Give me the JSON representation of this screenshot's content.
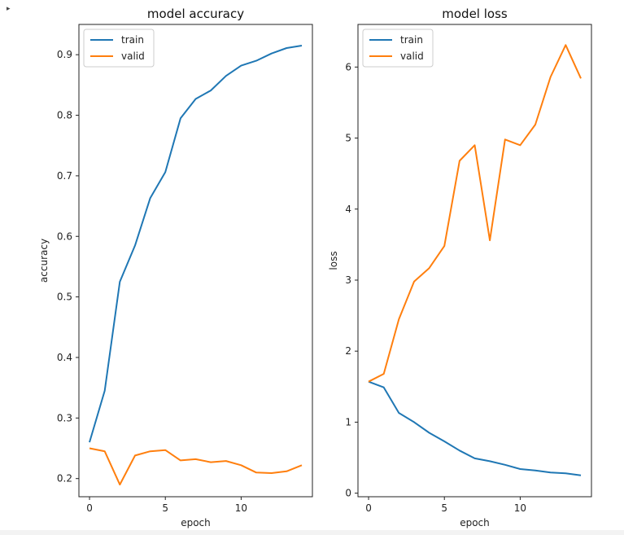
{
  "marker": "▸",
  "chart_data": [
    {
      "type": "line",
      "title": "model accuracy",
      "xlabel": "epoch",
      "ylabel": "accuracy",
      "xlim": [
        -0.7,
        14.7
      ],
      "ylim": [
        0.17,
        0.95
      ],
      "xticks": [
        0,
        5,
        10
      ],
      "yticks": [
        0.2,
        0.3,
        0.4,
        0.5,
        0.6,
        0.7,
        0.8,
        0.9
      ],
      "ytick_labels": [
        "0.2",
        "0.3",
        "0.4",
        "0.5",
        "0.6",
        "0.7",
        "0.8",
        "0.9"
      ],
      "legend_position": "top-left",
      "x": [
        0,
        1,
        2,
        3,
        4,
        5,
        6,
        7,
        8,
        9,
        10,
        11,
        12,
        13,
        14
      ],
      "series": [
        {
          "name": "train",
          "color": "#1f77b4",
          "values": [
            0.26,
            0.345,
            0.525,
            0.585,
            0.663,
            0.706,
            0.795,
            0.827,
            0.841,
            0.865,
            0.882,
            0.89,
            0.902,
            0.911,
            0.915
          ]
        },
        {
          "name": "valid",
          "color": "#ff7f0e",
          "values": [
            0.25,
            0.245,
            0.19,
            0.238,
            0.245,
            0.247,
            0.23,
            0.232,
            0.227,
            0.229,
            0.222,
            0.21,
            0.209,
            0.212,
            0.222
          ]
        }
      ]
    },
    {
      "type": "line",
      "title": "model loss",
      "xlabel": "epoch",
      "ylabel": "loss",
      "xlim": [
        -0.7,
        14.7
      ],
      "ylim": [
        -0.05,
        6.6
      ],
      "xticks": [
        0,
        5,
        10
      ],
      "yticks": [
        0,
        1,
        2,
        3,
        4,
        5,
        6
      ],
      "ytick_labels": [
        "0",
        "1",
        "2",
        "3",
        "4",
        "5",
        "6"
      ],
      "legend_position": "top-left",
      "x": [
        0,
        1,
        2,
        3,
        4,
        5,
        6,
        7,
        8,
        9,
        10,
        11,
        12,
        13,
        14
      ],
      "series": [
        {
          "name": "train",
          "color": "#1f77b4",
          "values": [
            1.57,
            1.49,
            1.13,
            1.0,
            0.85,
            0.73,
            0.6,
            0.49,
            0.45,
            0.4,
            0.34,
            0.32,
            0.29,
            0.28,
            0.25
          ]
        },
        {
          "name": "valid",
          "color": "#ff7f0e",
          "values": [
            1.57,
            1.68,
            2.45,
            2.98,
            3.17,
            3.48,
            4.68,
            4.9,
            3.56,
            4.98,
            4.9,
            5.19,
            5.86,
            6.31,
            5.84
          ]
        }
      ]
    }
  ]
}
